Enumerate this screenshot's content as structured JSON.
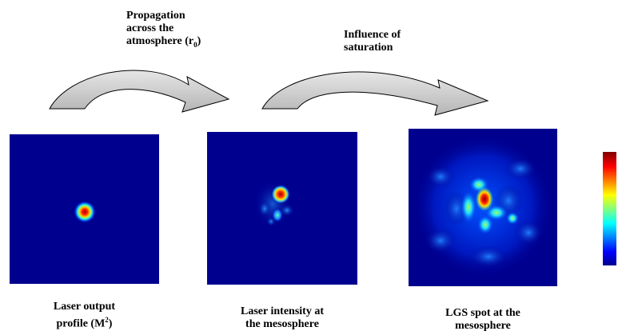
{
  "arrow_labels": {
    "first": {
      "line1": "Propagation",
      "line2": "across the",
      "line3_prefix": "atmosphere (r",
      "line3_sub": "0",
      "line3_suffix": ")"
    },
    "second": {
      "line1": "Influence of",
      "line2": "saturation"
    }
  },
  "panels": [
    {
      "line1": "Laser output",
      "line2_prefix": "profile (M",
      "line2_sup": "2",
      "line2_suffix": ")"
    },
    {
      "line1": "Laser intensity at",
      "line2": "the mesosphere"
    },
    {
      "line1": "LGS spot at the",
      "line2": "mesosphere"
    }
  ],
  "colors": {
    "background_field": "#00008f",
    "arrow_fill": "#c8c8c8",
    "arrow_stroke": "#000000",
    "colormap": [
      "#00008f",
      "#0000ff",
      "#00ffff",
      "#ffff00",
      "#ff0000",
      "#800000"
    ]
  }
}
